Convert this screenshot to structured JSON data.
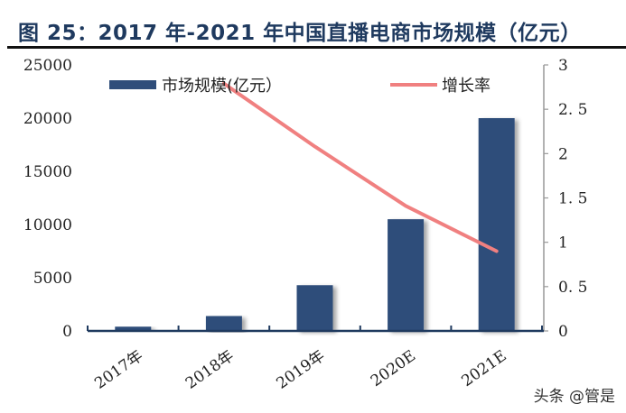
{
  "title": "图 25：2017 年-2021 年中国直播电商市场规模（亿元）",
  "watermark": "头条 @管是",
  "colors": {
    "bar": "#2f4d7a",
    "line": "#f08080",
    "axis": "#1f3a5f",
    "right_axis": "#999999"
  },
  "chart_data": {
    "type": "bar+line",
    "title": "2017 年-2021 年中国直播电商市场规模（亿元）",
    "categories": [
      "2017年",
      "2018年",
      "2019年",
      "2020E",
      "2021E"
    ],
    "series": [
      {
        "name": "市场规模(亿元）",
        "type": "bar",
        "axis": "left",
        "values": [
          400,
          1400,
          4300,
          10500,
          20000
        ]
      },
      {
        "name": "增长率",
        "type": "line",
        "axis": "right",
        "values": [
          null,
          2.79,
          2.08,
          1.41,
          0.9
        ]
      }
    ],
    "y_left": {
      "ticks": [
        "0",
        "5000",
        "10000",
        "15000",
        "20000",
        "25000"
      ],
      "ylim": [
        0,
        25000
      ]
    },
    "y_right": {
      "ticks": [
        "0",
        "0. 5",
        "1",
        "1. 5",
        "2",
        "2. 5",
        "3"
      ],
      "ylim": [
        0,
        3
      ]
    },
    "xlabel": "",
    "ylabel": "",
    "grid": false,
    "legend": {
      "position": "top",
      "entries": [
        "市场规模(亿元）",
        "增长率"
      ]
    }
  }
}
